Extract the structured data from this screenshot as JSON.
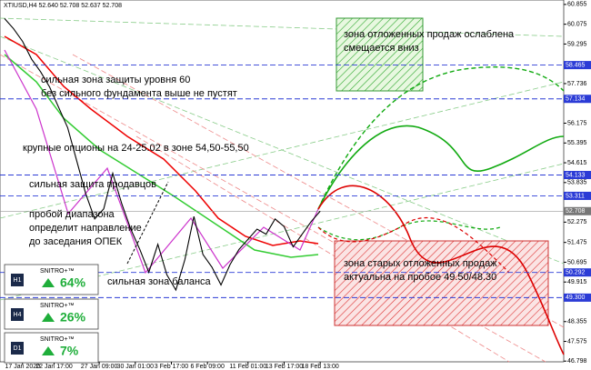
{
  "chart_data": {
    "type": "line",
    "subtitle": "XTIUSD,H4 52.640 52.708 52.637 52.708",
    "x": [
      0,
      2,
      4,
      6,
      8,
      10,
      12,
      14,
      16,
      18,
      20,
      22,
      24,
      26,
      28,
      30,
      32,
      34,
      36,
      38,
      40,
      42,
      44,
      46,
      48,
      50,
      52,
      54,
      56,
      58,
      60,
      62,
      64,
      66,
      68,
      70
    ],
    "series": [
      {
        "color": "#000000",
        "values": [
          60.3,
          59.9,
          59.4,
          58.7,
          58.2,
          57.6,
          56.8,
          56.0,
          54.7,
          53.4,
          52.4,
          52.8,
          54.2,
          53.0,
          52.0,
          51.2,
          50.3,
          51.4,
          50.2,
          49.6,
          50.8,
          52.5,
          51.0,
          50.5,
          49.8,
          50.6,
          51.2,
          51.6,
          52.0,
          51.8,
          52.4,
          52.1,
          51.3,
          51.8,
          52.3,
          52.708
        ]
      }
    ],
    "xlim": [
      -1,
      124
    ],
    "xticks": [
      {
        "value": 4,
        "label": "17 Jan 2020"
      },
      {
        "value": 11,
        "label": "22 Jan 17:00"
      },
      {
        "value": 21,
        "label": "27 Jan 09:00"
      },
      {
        "value": 29,
        "label": "30 Jan 01:00"
      },
      {
        "value": 37,
        "label": "3 Feb 17:00"
      },
      {
        "value": 45,
        "label": "6 Feb 09:00"
      },
      {
        "value": 54,
        "label": "11 Feb 01:00"
      },
      {
        "value": 62,
        "label": "13 Feb 17:00"
      },
      {
        "value": 70,
        "label": "18 Feb 13:00"
      }
    ],
    "ylim": [
      46.77,
      61.03
    ],
    "yticks": [
      60.855,
      60.075,
      59.295,
      57.736,
      56.175,
      55.395,
      54.615,
      53.835,
      52.275,
      51.475,
      50.695,
      49.915,
      48.355,
      47.575,
      46.798
    ],
    "levels": [
      58.465,
      57.134,
      54.133,
      53.311,
      50.292,
      {
        "value": 49.3,
        "label": "49.300"
      }
    ],
    "level_color": "#2b3bd6",
    "last_price": 52.708,
    "annotations": [
      {
        "lines": [
          "зона отложенных продаж ослаблена",
          "смещается вниз"
        ]
      },
      {
        "lines": [
          "сильная зона защиты уровня 60",
          "без сильного фундамента выше не пустят"
        ]
      },
      {
        "lines": [
          "крупные опционы на 24-25.02 в зоне 54,50-55,50"
        ]
      },
      {
        "lines": [
          "сильная защита продавцов"
        ]
      },
      {
        "lines": [
          "пробой диапазона",
          "определит направление",
          "до заседания ОПЕК"
        ]
      },
      {
        "lines": [
          "сильная зона баланса"
        ]
      },
      {
        "lines": [
          "зона старых отложенных продаж",
          "актуальна на пробое 49.50/48.30"
        ]
      }
    ]
  },
  "indicators": [
    {
      "timeframe": "H1",
      "name": "SNITRO+™",
      "value": "64%"
    },
    {
      "timeframe": "H4",
      "name": "SNITRO+™",
      "value": "26%"
    },
    {
      "timeframe": "D1",
      "name": "SNITRO+™",
      "value": "7%"
    }
  ]
}
